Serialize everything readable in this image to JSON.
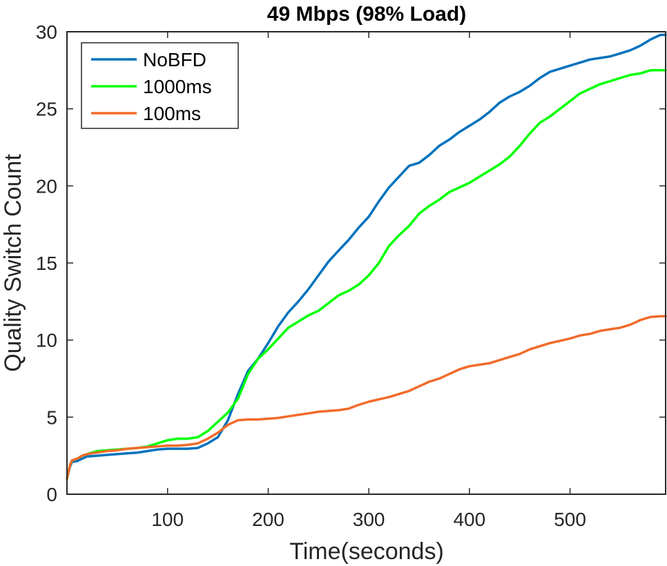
{
  "chart_data": {
    "type": "line",
    "title": "49 Mbps (98% Load)",
    "xlabel": "Time(seconds)",
    "ylabel": "Quality Switch Count",
    "xlim": [
      0,
      595
    ],
    "ylim": [
      0,
      30
    ],
    "xticks": [
      100,
      200,
      300,
      400,
      500
    ],
    "yticks": [
      0,
      5,
      10,
      15,
      20,
      25,
      30
    ],
    "grid": false,
    "legend": "top-left",
    "series": [
      {
        "name": "NoBFD",
        "color": "#0072BD",
        "x": [
          0,
          3,
          5,
          10,
          15,
          20,
          30,
          40,
          50,
          60,
          70,
          80,
          90,
          100,
          110,
          120,
          130,
          140,
          150,
          160,
          170,
          180,
          190,
          200,
          210,
          220,
          230,
          240,
          250,
          260,
          270,
          280,
          290,
          300,
          310,
          320,
          330,
          340,
          350,
          360,
          370,
          380,
          390,
          400,
          410,
          420,
          430,
          440,
          450,
          460,
          470,
          480,
          490,
          500,
          510,
          520,
          530,
          540,
          550,
          560,
          570,
          580,
          590,
          595
        ],
        "y": [
          1.0,
          1.8,
          2.1,
          2.15,
          2.3,
          2.45,
          2.5,
          2.55,
          2.6,
          2.65,
          2.7,
          2.8,
          2.9,
          2.95,
          2.95,
          2.95,
          3.0,
          3.3,
          3.7,
          4.8,
          6.5,
          8.0,
          8.8,
          9.8,
          10.9,
          11.8,
          12.5,
          13.3,
          14.2,
          15.1,
          15.8,
          16.5,
          17.3,
          18.0,
          19.0,
          19.9,
          20.6,
          21.3,
          21.5,
          22.0,
          22.6,
          23.0,
          23.5,
          23.9,
          24.3,
          24.8,
          25.4,
          25.8,
          26.1,
          26.5,
          27.0,
          27.4,
          27.6,
          27.8,
          28.0,
          28.2,
          28.3,
          28.4,
          28.6,
          28.8,
          29.1,
          29.5,
          29.8,
          29.8
        ]
      },
      {
        "name": "1000ms",
        "color": "#00FF00",
        "x": [
          0,
          3,
          5,
          10,
          15,
          20,
          30,
          40,
          50,
          60,
          70,
          80,
          90,
          100,
          110,
          120,
          130,
          140,
          150,
          160,
          170,
          180,
          190,
          200,
          210,
          220,
          230,
          240,
          250,
          260,
          270,
          280,
          290,
          300,
          310,
          320,
          330,
          340,
          350,
          360,
          370,
          380,
          390,
          400,
          410,
          420,
          430,
          440,
          450,
          460,
          470,
          480,
          490,
          500,
          510,
          520,
          530,
          540,
          550,
          560,
          570,
          580,
          590,
          595
        ],
        "y": [
          1.0,
          1.9,
          2.2,
          2.3,
          2.5,
          2.6,
          2.8,
          2.85,
          2.9,
          2.95,
          3.0,
          3.1,
          3.3,
          3.5,
          3.6,
          3.6,
          3.7,
          4.1,
          4.7,
          5.3,
          6.2,
          7.8,
          8.8,
          9.4,
          10.1,
          10.8,
          11.2,
          11.6,
          11.9,
          12.4,
          12.9,
          13.2,
          13.6,
          14.2,
          15.0,
          16.1,
          16.8,
          17.4,
          18.2,
          18.7,
          19.1,
          19.6,
          19.9,
          20.2,
          20.6,
          21.0,
          21.4,
          21.9,
          22.6,
          23.4,
          24.1,
          24.5,
          25.0,
          25.5,
          26.0,
          26.3,
          26.6,
          26.8,
          27.0,
          27.2,
          27.3,
          27.5,
          27.5,
          27.5
        ]
      },
      {
        "name": "100ms",
        "color": "#F26B2A",
        "x": [
          0,
          3,
          5,
          10,
          15,
          20,
          30,
          40,
          50,
          60,
          70,
          80,
          90,
          100,
          110,
          120,
          130,
          140,
          150,
          160,
          170,
          180,
          190,
          200,
          210,
          220,
          230,
          240,
          250,
          260,
          270,
          280,
          290,
          300,
          310,
          320,
          330,
          340,
          350,
          360,
          370,
          380,
          390,
          400,
          410,
          420,
          430,
          440,
          450,
          460,
          470,
          480,
          490,
          500,
          510,
          520,
          530,
          540,
          550,
          560,
          570,
          580,
          590,
          595
        ],
        "y": [
          1.0,
          1.9,
          2.2,
          2.3,
          2.5,
          2.6,
          2.7,
          2.8,
          2.85,
          2.95,
          3.0,
          3.05,
          3.1,
          3.15,
          3.15,
          3.2,
          3.3,
          3.6,
          4.0,
          4.5,
          4.8,
          4.85,
          4.85,
          4.9,
          4.95,
          5.05,
          5.15,
          5.25,
          5.35,
          5.4,
          5.45,
          5.55,
          5.8,
          6.0,
          6.15,
          6.3,
          6.5,
          6.7,
          7.0,
          7.3,
          7.5,
          7.8,
          8.1,
          8.3,
          8.4,
          8.5,
          8.7,
          8.9,
          9.1,
          9.4,
          9.6,
          9.8,
          9.95,
          10.1,
          10.3,
          10.4,
          10.6,
          10.7,
          10.8,
          11.0,
          11.3,
          11.5,
          11.55,
          11.55
        ]
      }
    ]
  }
}
